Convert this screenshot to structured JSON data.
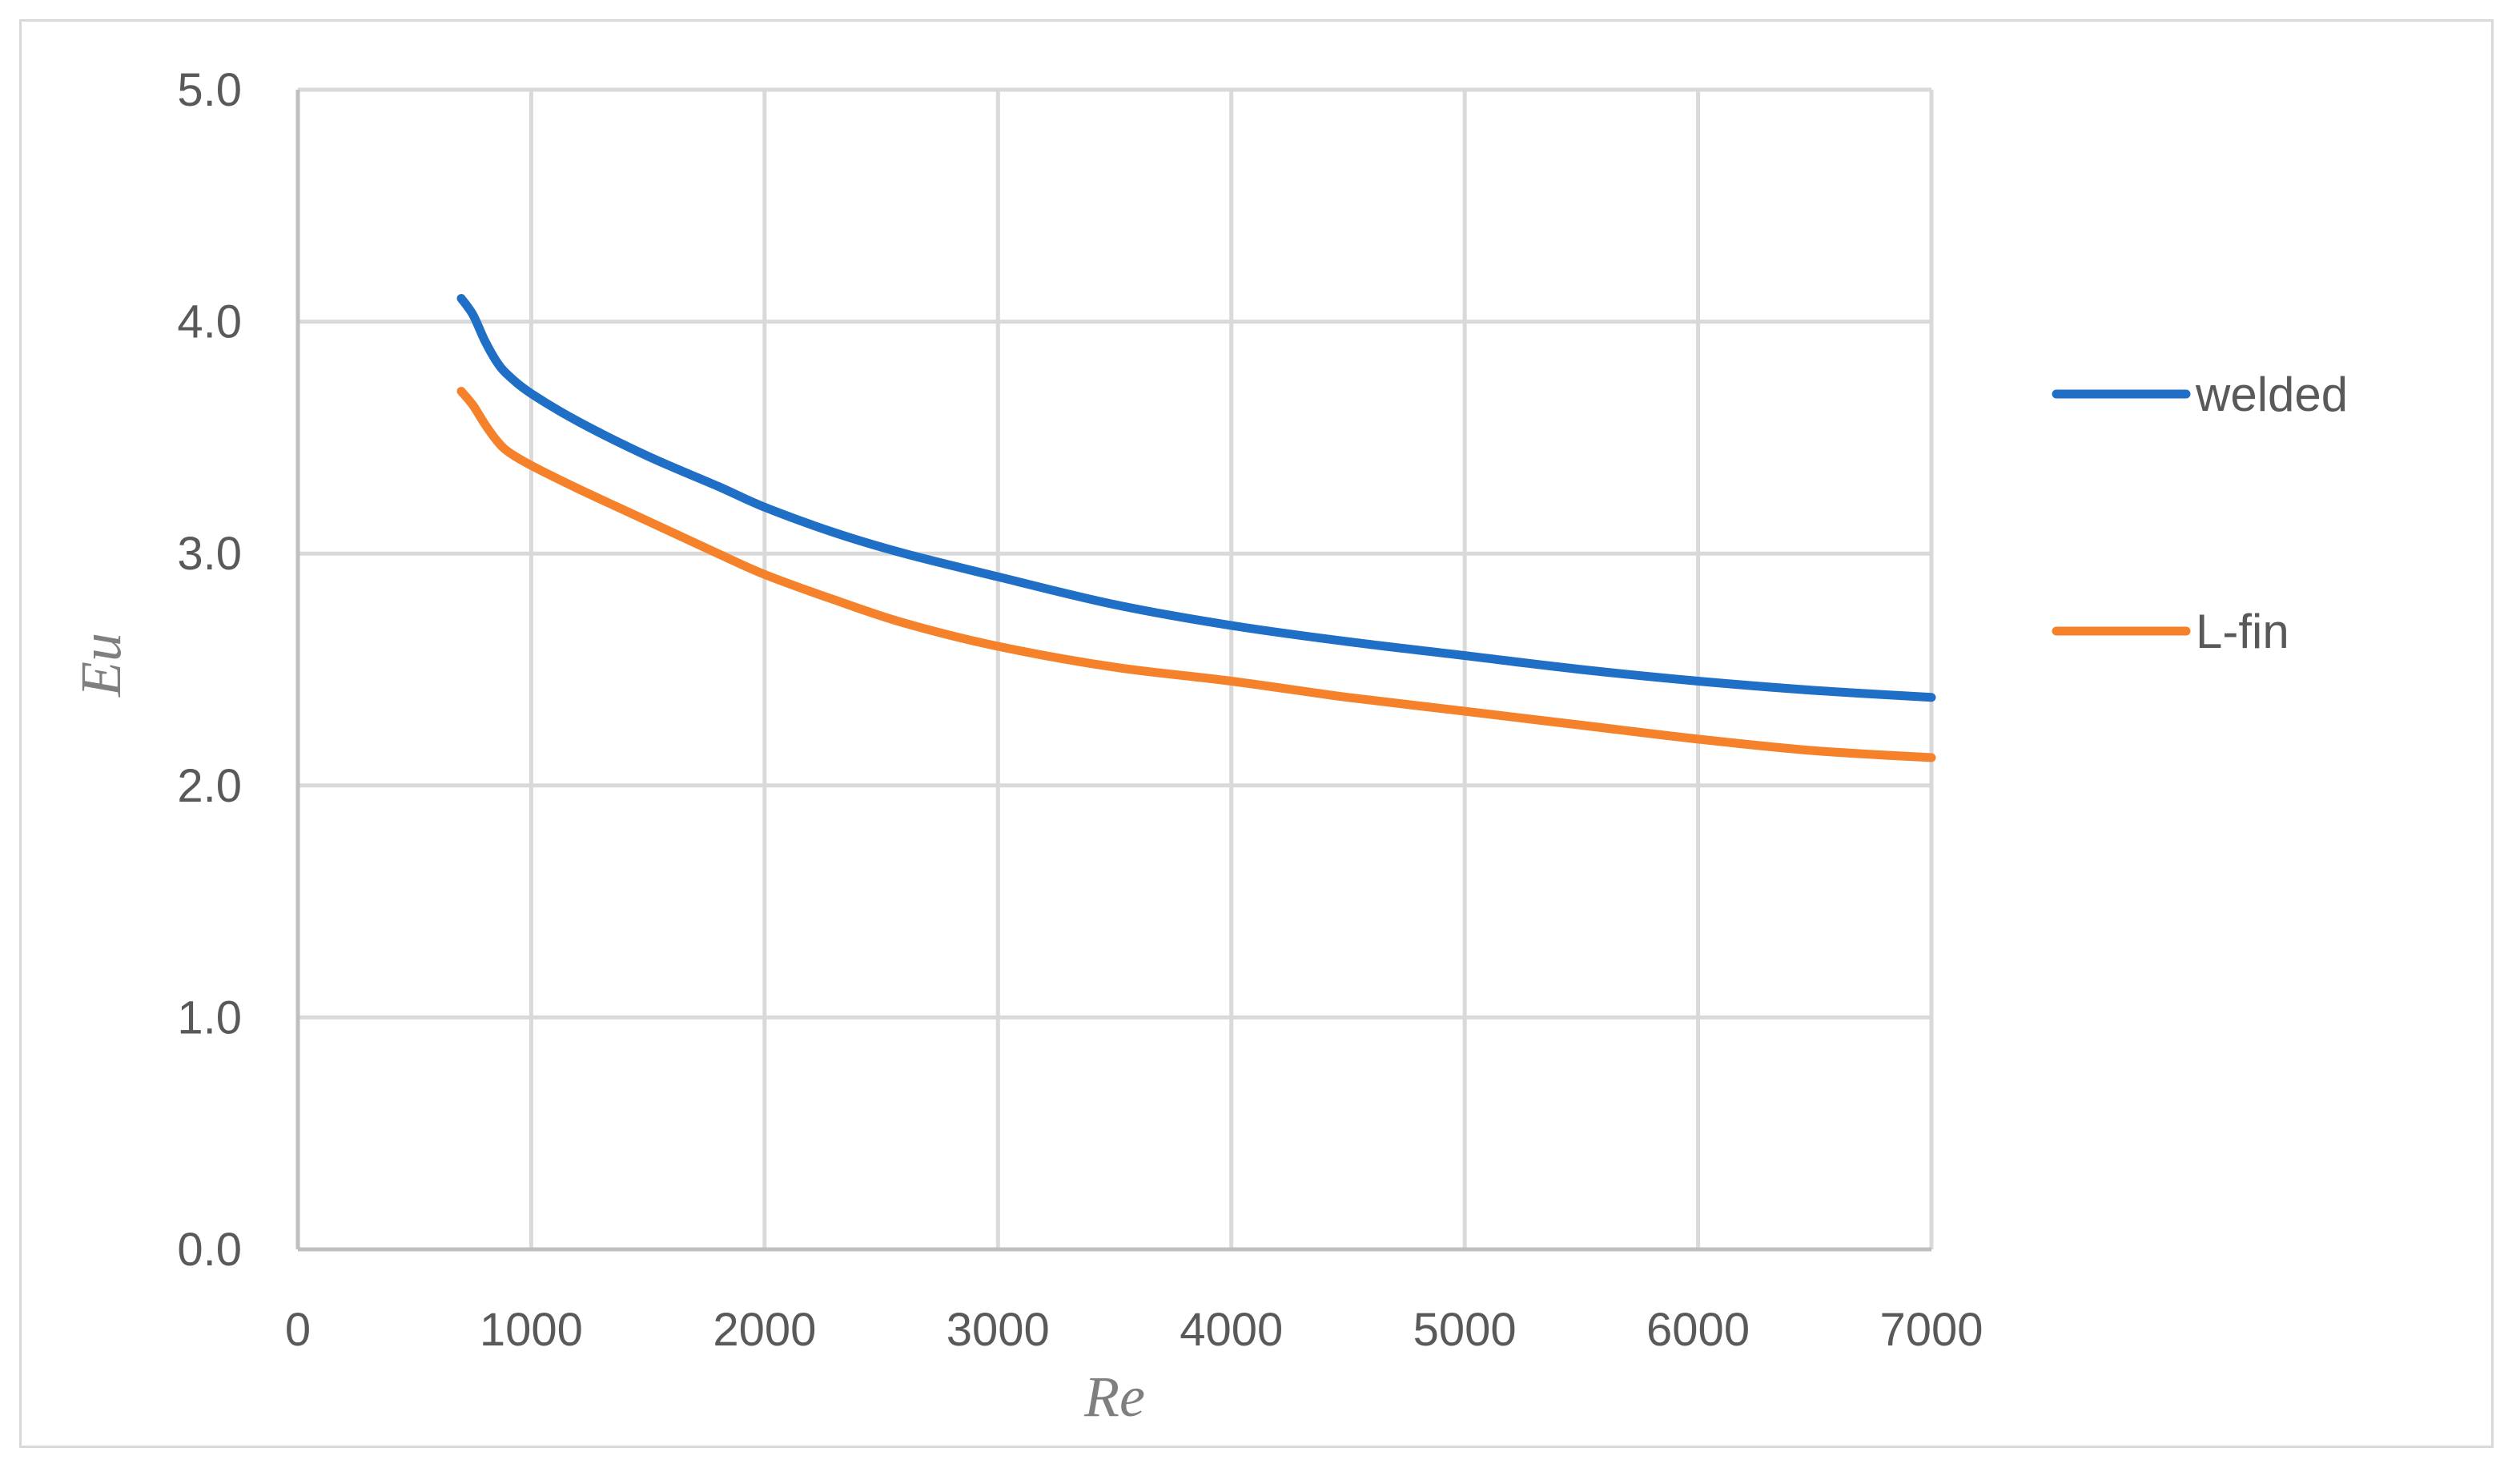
{
  "chart_data": {
    "type": "line",
    "title": "",
    "xlabel": "Re",
    "ylabel": "Eu",
    "xlim": [
      0,
      7000
    ],
    "ylim": [
      0.0,
      5.0
    ],
    "x_ticks": [
      "0",
      "1000",
      "2000",
      "3000",
      "4000",
      "5000",
      "6000",
      "7000"
    ],
    "y_ticks": [
      "0.0",
      "1.0",
      "2.0",
      "3.0",
      "4.0",
      "5.0"
    ],
    "grid": true,
    "legend_position": "right",
    "series": [
      {
        "name": "welded",
        "color": "#1f6fc6",
        "points": [
          [
            700,
            4.1
          ],
          [
            750,
            4.03
          ],
          [
            800,
            3.92
          ],
          [
            850,
            3.83
          ],
          [
            900,
            3.77
          ],
          [
            1000,
            3.69
          ],
          [
            1200,
            3.57
          ],
          [
            1500,
            3.42
          ],
          [
            1800,
            3.29
          ],
          [
            2000,
            3.2
          ],
          [
            2300,
            3.09
          ],
          [
            2600,
            3.0
          ],
          [
            3000,
            2.9
          ],
          [
            3500,
            2.78
          ],
          [
            4000,
            2.69
          ],
          [
            4500,
            2.62
          ],
          [
            5000,
            2.56
          ],
          [
            5500,
            2.5
          ],
          [
            6000,
            2.45
          ],
          [
            6500,
            2.41
          ],
          [
            7000,
            2.38
          ]
        ]
      },
      {
        "name": "L-fin",
        "color": "#f5822a",
        "points": [
          [
            700,
            3.7
          ],
          [
            750,
            3.64
          ],
          [
            800,
            3.56
          ],
          [
            850,
            3.49
          ],
          [
            900,
            3.44
          ],
          [
            1000,
            3.38
          ],
          [
            1200,
            3.28
          ],
          [
            1500,
            3.14
          ],
          [
            1800,
            3.0
          ],
          [
            2000,
            2.91
          ],
          [
            2300,
            2.8
          ],
          [
            2600,
            2.7
          ],
          [
            3000,
            2.6
          ],
          [
            3500,
            2.51
          ],
          [
            4000,
            2.45
          ],
          [
            4500,
            2.38
          ],
          [
            5000,
            2.32
          ],
          [
            5500,
            2.26
          ],
          [
            6000,
            2.2
          ],
          [
            6500,
            2.15
          ],
          [
            7000,
            2.12
          ]
        ]
      }
    ]
  }
}
